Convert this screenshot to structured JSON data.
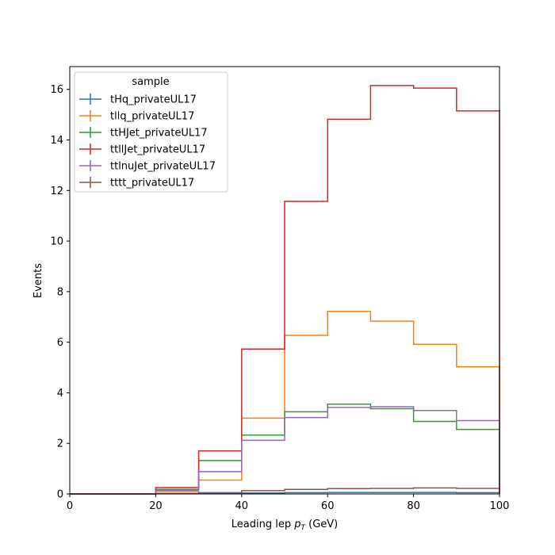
{
  "chart_data": {
    "type": "line",
    "drawstyle": "steps",
    "x_edges": [
      0,
      10,
      20,
      30,
      40,
      50,
      60,
      70,
      80,
      90,
      100
    ],
    "xlabel_main": "Leading lep ",
    "xlabel_sym": "p",
    "xlabel_sub": "T",
    "xlabel_unit": " (GeV)",
    "ylabel": "Events",
    "xlim": [
      0,
      100
    ],
    "ylim": [
      0,
      16.9
    ],
    "xticks": [
      "0",
      "20",
      "40",
      "60",
      "80",
      "100"
    ],
    "yticks": [
      "0",
      "2",
      "4",
      "6",
      "8",
      "10",
      "12",
      "14",
      "16"
    ],
    "grid": false,
    "legend": {
      "title": "sample",
      "placement": "top-left"
    },
    "series": [
      {
        "name": "tHq_privateUL17",
        "color": "#1f77b4",
        "values": [
          0,
          0,
          0.02,
          0.03,
          0.04,
          0.05,
          0.06,
          0.06,
          0.06,
          0.05
        ]
      },
      {
        "name": "tllq_privateUL17",
        "color": "#ff7f0e",
        "values": [
          0,
          0,
          0.1,
          0.55,
          3.0,
          6.27,
          7.22,
          6.83,
          5.92,
          5.03
        ]
      },
      {
        "name": "ttHJet_privateUL17",
        "color": "#2ca02c",
        "values": [
          0,
          0,
          0.18,
          1.32,
          2.33,
          3.25,
          3.55,
          3.37,
          2.87,
          2.55
        ]
      },
      {
        "name": "ttllJet_privateUL17",
        "color": "#d62728",
        "values": [
          0,
          0,
          0.25,
          1.7,
          5.73,
          11.57,
          14.82,
          16.15,
          16.05,
          15.15
        ]
      },
      {
        "name": "ttlnuJet_privateUL17",
        "color": "#9467bd",
        "values": [
          0,
          0,
          0.15,
          0.88,
          2.12,
          3.02,
          3.42,
          3.45,
          3.3,
          2.9
        ]
      },
      {
        "name": "tttt_privateUL17",
        "color": "#8c564b",
        "values": [
          0,
          0,
          0.02,
          0.05,
          0.13,
          0.18,
          0.21,
          0.22,
          0.24,
          0.22
        ]
      }
    ]
  }
}
